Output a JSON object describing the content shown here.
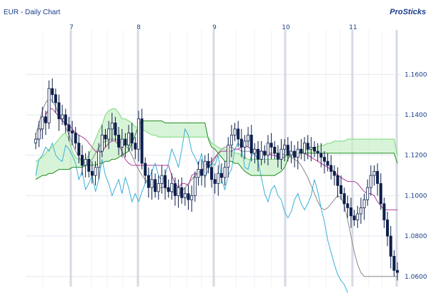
{
  "header": {
    "title": "EUR - Daily Chart",
    "brand": "ProSticks"
  },
  "chart_data": {
    "type": "candlestick",
    "title": "EUR - Daily Chart",
    "x_month_labels": [
      "7",
      "8",
      "9",
      "10",
      "11"
    ],
    "y_ticks": [
      "1.0600",
      "1.0800",
      "1.1000",
      "1.1200",
      "1.1400",
      "1.1600"
    ],
    "y_tick_values": [
      1.06,
      1.08,
      1.1,
      1.12,
      1.14,
      1.16
    ],
    "ylim": [
      1.055,
      1.182
    ],
    "grid": true,
    "period_count": 110,
    "candles_close": [
      1.128,
      1.133,
      1.139,
      1.136,
      1.153,
      1.15,
      1.146,
      1.138,
      1.14,
      1.135,
      1.132,
      1.131,
      1.126,
      1.12,
      1.115,
      1.118,
      1.112,
      1.11,
      1.114,
      1.122,
      1.13,
      1.128,
      1.133,
      1.136,
      1.13,
      1.124,
      1.128,
      1.125,
      1.131,
      1.126,
      1.123,
      1.138,
      1.116,
      1.11,
      1.104,
      1.108,
      1.102,
      1.106,
      1.11,
      1.104,
      1.102,
      1.106,
      1.1,
      1.104,
      1.099,
      1.101,
      1.098,
      1.1,
      1.109,
      1.113,
      1.11,
      1.117,
      1.114,
      1.108,
      1.106,
      1.111,
      1.109,
      1.114,
      1.125,
      1.13,
      1.133,
      1.128,
      1.124,
      1.127,
      1.13,
      1.121,
      1.123,
      1.118,
      1.122,
      1.12,
      1.126,
      1.124,
      1.121,
      1.118,
      1.123,
      1.125,
      1.12,
      1.122,
      1.119,
      1.123,
      1.121,
      1.126,
      1.123,
      1.124,
      1.122,
      1.121,
      1.119,
      1.117,
      1.115,
      1.112,
      1.11,
      1.105,
      1.101,
      1.096,
      1.094,
      1.09,
      1.088,
      1.091,
      1.094,
      1.098,
      1.104,
      1.11,
      1.112,
      1.106,
      1.096,
      1.088,
      1.08,
      1.07,
      1.063,
      1.062
    ],
    "series": [
      {
        "role": "baseline",
        "color": "#8a8a8a",
        "values": [
          1.13,
          1.136,
          1.142,
          1.146,
          1.148,
          1.147,
          1.144,
          1.14,
          1.138,
          1.134,
          1.13,
          1.126,
          1.122,
          1.119,
          1.117,
          1.116,
          1.116,
          1.118,
          1.121,
          1.124,
          1.126,
          1.127,
          1.127,
          1.128,
          1.128,
          1.127,
          1.126,
          1.125,
          1.123,
          1.12,
          1.116,
          1.113,
          1.11,
          1.108,
          1.106,
          1.105,
          1.104,
          1.104,
          1.104,
          1.104,
          1.103,
          1.102,
          1.101,
          1.101,
          1.102,
          1.104,
          1.106,
          1.108,
          1.11,
          1.111,
          1.112,
          1.113,
          1.114,
          1.116,
          1.118,
          1.121,
          1.123,
          1.124,
          1.124,
          1.124,
          1.123,
          1.123,
          1.122,
          1.122,
          1.122,
          1.122,
          1.122,
          1.122,
          1.122,
          1.122,
          1.121,
          1.121,
          1.121,
          1.121,
          1.121,
          1.12,
          1.12,
          1.119,
          1.118,
          1.117,
          1.115,
          1.112,
          1.109,
          1.105,
          1.101,
          1.097,
          1.094,
          1.093,
          1.094,
          1.096,
          1.098,
          1.1,
          1.099,
          1.095,
          1.088,
          1.08,
          1.072,
          1.066,
          1.062,
          1.06,
          1.06,
          1.06,
          1.06,
          1.06,
          1.06,
          1.06,
          1.06,
          1.06,
          1.06,
          1.06
        ]
      },
      {
        "role": "conversion",
        "color": "#b23a9a",
        "values": [
          1.126,
          1.13,
          1.135,
          1.14,
          1.143,
          1.143,
          1.141,
          1.139,
          1.137,
          1.136,
          1.135,
          1.133,
          1.131,
          1.13,
          1.129,
          1.128,
          1.126,
          1.124,
          1.122,
          1.121,
          1.122,
          1.124,
          1.126,
          1.127,
          1.127,
          1.125,
          1.122,
          1.118,
          1.116,
          1.115,
          1.115,
          1.115,
          1.115,
          1.115,
          1.115,
          1.115,
          1.115,
          1.115,
          1.115,
          1.115,
          1.115,
          1.11,
          1.106,
          1.104,
          1.106,
          1.106,
          1.105,
          1.11,
          1.111,
          1.111,
          1.112,
          1.115,
          1.116,
          1.117,
          1.119,
          1.121,
          1.122,
          1.122,
          1.122,
          1.122,
          1.123,
          1.123,
          1.124,
          1.125,
          1.124,
          1.123,
          1.123,
          1.122,
          1.122,
          1.121,
          1.121,
          1.12,
          1.12,
          1.119,
          1.119,
          1.119,
          1.12,
          1.121,
          1.121,
          1.121,
          1.121,
          1.121,
          1.12,
          1.119,
          1.118,
          1.117,
          1.116,
          1.115,
          1.114,
          1.113,
          1.112,
          1.11,
          1.109,
          1.108,
          1.107,
          1.107,
          1.107,
          1.106,
          1.104,
          1.102,
          1.101,
          1.101,
          1.1,
          1.097,
          1.095,
          1.093,
          1.093,
          1.093,
          1.093,
          1.093
        ]
      },
      {
        "role": "lagging",
        "color": "#3ab0d8",
        "values": [
          1.11,
          1.118,
          1.12,
          1.124,
          1.122,
          1.126,
          1.12,
          1.118,
          1.117,
          1.125,
          1.123,
          1.12,
          1.116,
          1.108,
          1.112,
          1.103,
          1.106,
          1.11,
          1.102,
          1.108,
          1.118,
          1.11,
          1.106,
          1.1,
          1.104,
          1.108,
          1.101,
          1.109,
          1.104,
          1.097,
          1.101,
          1.097,
          1.102,
          1.106,
          1.108,
          1.112,
          1.116,
          1.11,
          1.107,
          1.11,
          1.116,
          1.123,
          1.119,
          1.114,
          1.123,
          1.133,
          1.13,
          1.122,
          1.119,
          1.115,
          1.121,
          1.109,
          1.113,
          1.116,
          1.115,
          1.12,
          1.108,
          1.103,
          1.11,
          1.113,
          1.123,
          1.126,
          1.124,
          1.114,
          1.113,
          1.12,
          1.121,
          1.117,
          1.109,
          1.101,
          1.097,
          1.103,
          1.105,
          1.1,
          1.098,
          1.092,
          1.089,
          1.092,
          1.098,
          1.101,
          1.096,
          1.093,
          1.096,
          1.1,
          1.108,
          1.102,
          1.094,
          1.087,
          1.078,
          1.072,
          1.066,
          1.061,
          1.058,
          1.056,
          1.052
        ]
      },
      {
        "role": "leading-span-a",
        "color": "#1e8a1e",
        "values": [
          1.108,
          1.109,
          1.11,
          1.11,
          1.111,
          1.111,
          1.112,
          1.113,
          1.113,
          1.113,
          1.113,
          1.114,
          1.114,
          1.114,
          1.114,
          1.115,
          1.115,
          1.115,
          1.115,
          1.116,
          1.116,
          1.117,
          1.117,
          1.118,
          1.118,
          1.119,
          1.12,
          1.121,
          1.122,
          1.126,
          1.13,
          1.135,
          1.137,
          1.137,
          1.137,
          1.137,
          1.137,
          1.137,
          1.137,
          1.136,
          1.136,
          1.136,
          1.136,
          1.136,
          1.136,
          1.136,
          1.136,
          1.136,
          1.136,
          1.136,
          1.136,
          1.136,
          1.128,
          1.124,
          1.123,
          1.121,
          1.119,
          1.117,
          1.117,
          1.117,
          1.116,
          1.116,
          1.114,
          1.112,
          1.111,
          1.11,
          1.11,
          1.11,
          1.11,
          1.11,
          1.11,
          1.11,
          1.11,
          1.111,
          1.112,
          1.114,
          1.118,
          1.121,
          1.121,
          1.121,
          1.121,
          1.121,
          1.121,
          1.121,
          1.121,
          1.121,
          1.121,
          1.121,
          1.121,
          1.121,
          1.121,
          1.121,
          1.121,
          1.121,
          1.121,
          1.121,
          1.121,
          1.121,
          1.121,
          1.121,
          1.121,
          1.121,
          1.121,
          1.121,
          1.121,
          1.121,
          1.121,
          1.121,
          1.121,
          1.116
        ]
      },
      {
        "role": "leading-span-b",
        "color": "#7ad87a",
        "values": [
          1.117,
          1.118,
          1.119,
          1.121,
          1.123,
          1.124,
          1.126,
          1.128,
          1.13,
          1.131,
          1.128,
          1.122,
          1.119,
          1.118,
          1.117,
          1.118,
          1.12,
          1.124,
          1.128,
          1.132,
          1.135,
          1.14,
          1.142,
          1.143,
          1.143,
          1.141,
          1.138,
          1.138,
          1.137,
          1.136,
          1.134,
          1.134,
          1.133,
          1.132,
          1.131,
          1.13,
          1.13,
          1.129,
          1.129,
          1.129,
          1.129,
          1.129,
          1.129,
          1.129,
          1.129,
          1.129,
          1.129,
          1.129,
          1.129,
          1.129,
          1.129,
          1.129,
          1.129,
          1.126,
          1.125,
          1.124,
          1.123,
          1.123,
          1.122,
          1.122,
          1.121,
          1.121,
          1.12,
          1.119,
          1.118,
          1.118,
          1.118,
          1.118,
          1.118,
          1.118,
          1.118,
          1.118,
          1.118,
          1.118,
          1.118,
          1.119,
          1.12,
          1.12,
          1.121,
          1.121,
          1.122,
          1.122,
          1.123,
          1.123,
          1.124,
          1.124,
          1.125,
          1.125,
          1.126,
          1.126,
          1.127,
          1.127,
          1.127,
          1.127,
          1.128,
          1.128,
          1.128,
          1.128,
          1.128,
          1.128,
          1.128,
          1.128,
          1.128,
          1.128,
          1.128,
          1.128,
          1.128,
          1.128,
          1.128,
          1.12
        ]
      }
    ]
  }
}
